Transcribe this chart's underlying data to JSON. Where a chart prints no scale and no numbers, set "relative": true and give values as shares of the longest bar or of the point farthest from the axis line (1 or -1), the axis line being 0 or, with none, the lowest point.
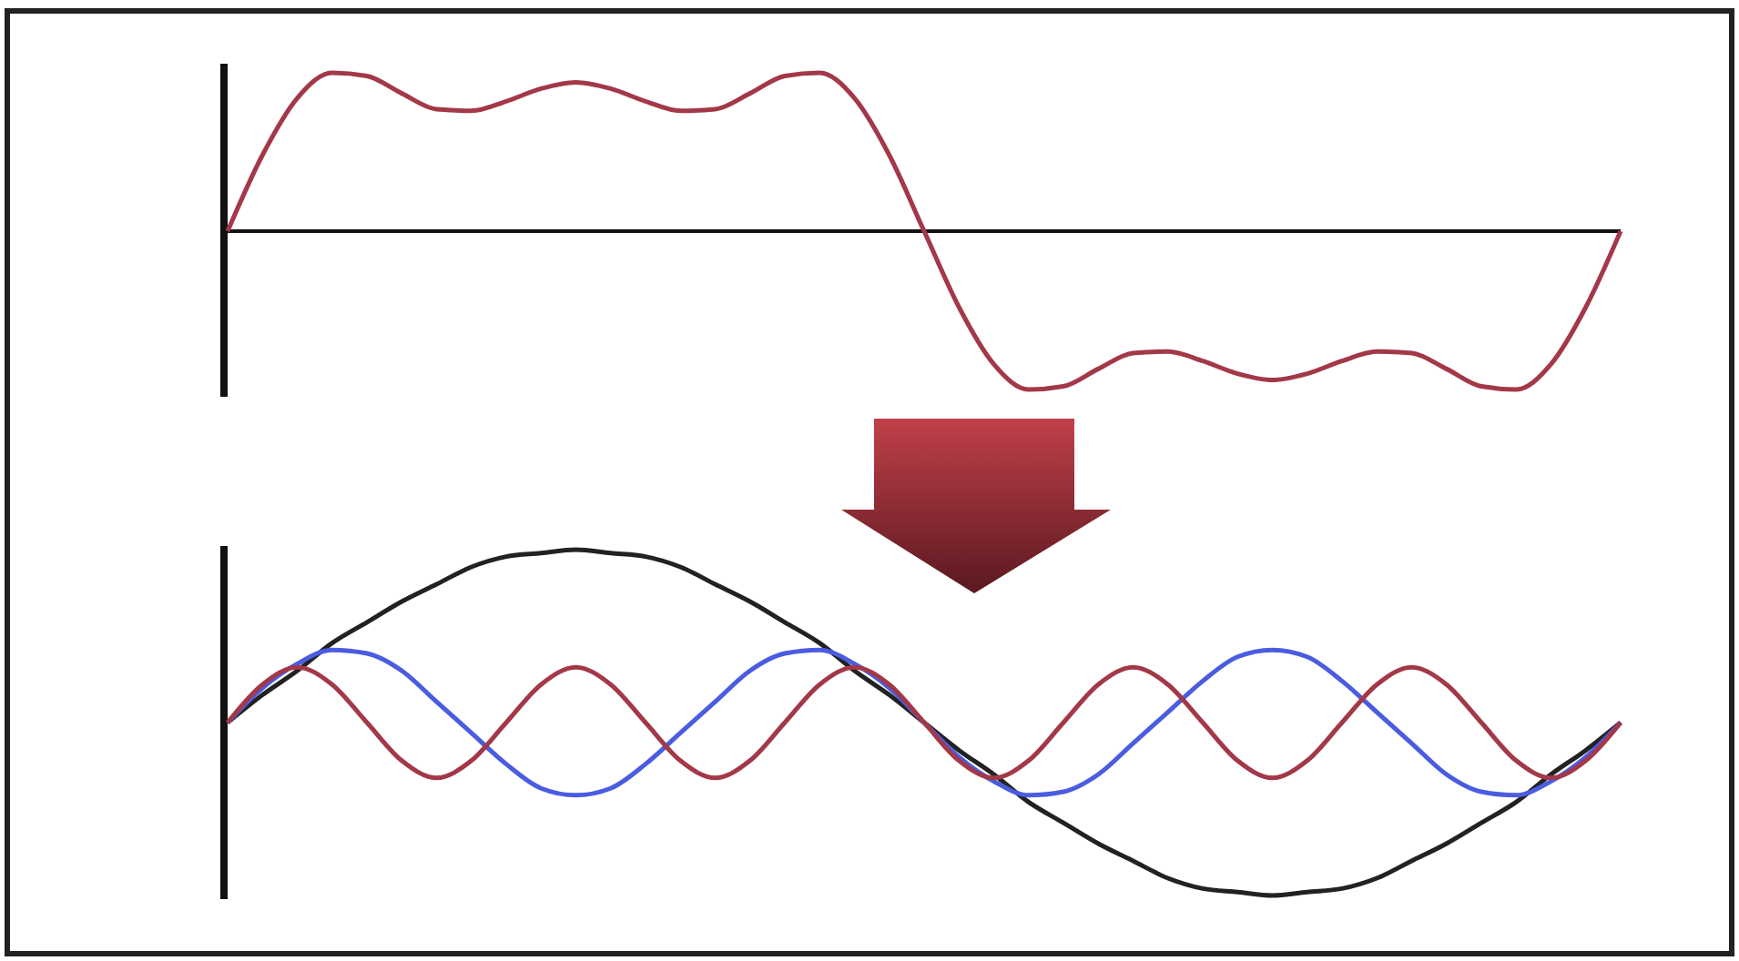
{
  "chart_data": [
    {
      "type": "line",
      "relative": true,
      "categories": [
        null,
        null,
        null,
        null,
        null,
        null,
        null,
        null,
        null,
        null,
        null,
        null,
        null,
        null,
        null,
        null,
        null,
        null,
        null,
        null,
        null,
        null,
        null,
        null,
        null,
        null,
        null,
        null,
        null,
        null,
        null,
        null,
        null,
        null,
        null,
        null,
        null,
        null,
        null,
        null,
        null
      ],
      "series": [
        {
          "color": "#a33848",
          "values": [
            0,
            0.48,
            0.84,
            1,
            0.98,
            0.87,
            0.77,
            0.76,
            0.82,
            0.9,
            0.94,
            0.9,
            0.82,
            0.76,
            0.77,
            0.87,
            0.98,
            1,
            0.84,
            0.48,
            0,
            -0.48,
            -0.84,
            -1,
            -0.98,
            -0.87,
            -0.77,
            -0.76,
            -0.82,
            -0.9,
            -0.94,
            -0.9,
            -0.82,
            -0.76,
            -0.77,
            -0.87,
            -0.98,
            -1,
            -0.84,
            -0.48,
            0
          ]
        }
      ]
    },
    {
      "type": "line",
      "relative": true,
      "categories": [
        null,
        null,
        null,
        null,
        null,
        null,
        null,
        null,
        null,
        null,
        null,
        null,
        null,
        null,
        null,
        null,
        null,
        null,
        null,
        null,
        null,
        null,
        null,
        null,
        null,
        null,
        null,
        null,
        null,
        null,
        null,
        null,
        null,
        null,
        null,
        null,
        null,
        null,
        null,
        null,
        null
      ],
      "series": [
        {
          "color": "#222222",
          "values": [
            0.5,
            0.58,
            0.65,
            0.73,
            0.79,
            0.85,
            0.9,
            0.95,
            0.98,
            0.99,
            1,
            0.99,
            0.98,
            0.95,
            0.9,
            0.85,
            0.79,
            0.73,
            0.65,
            0.58,
            0.5,
            0.42,
            0.35,
            0.27,
            0.21,
            0.15,
            0.1,
            0.05,
            0.02,
            0.01,
            0,
            0.01,
            0.02,
            0.05,
            0.1,
            0.15,
            0.21,
            0.27,
            0.35,
            0.42,
            0.5
          ]
        },
        {
          "color": "#4a5ce0",
          "values": [
            0.5,
            0.6,
            0.67,
            0.71,
            0.7,
            0.65,
            0.56,
            0.47,
            0.38,
            0.31,
            0.29,
            0.31,
            0.38,
            0.47,
            0.56,
            0.65,
            0.7,
            0.71,
            0.67,
            0.6,
            0.5,
            0.4,
            0.33,
            0.29,
            0.3,
            0.35,
            0.44,
            0.53,
            0.62,
            0.69,
            0.71,
            0.69,
            0.62,
            0.53,
            0.44,
            0.35,
            0.3,
            0.29,
            0.33,
            0.4,
            0.5
          ]
        },
        {
          "color": "#a33848",
          "values": [
            0.5,
            0.61,
            0.66,
            0.61,
            0.5,
            0.39,
            0.34,
            0.39,
            0.5,
            0.61,
            0.66,
            0.61,
            0.5,
            0.39,
            0.34,
            0.39,
            0.5,
            0.61,
            0.66,
            0.61,
            0.5,
            0.39,
            0.34,
            0.39,
            0.5,
            0.61,
            0.66,
            0.61,
            0.5,
            0.39,
            0.34,
            0.39,
            0.5,
            0.61,
            0.66,
            0.61,
            0.5,
            0.39,
            0.34,
            0.39,
            0.5
          ]
        }
      ]
    }
  ]
}
